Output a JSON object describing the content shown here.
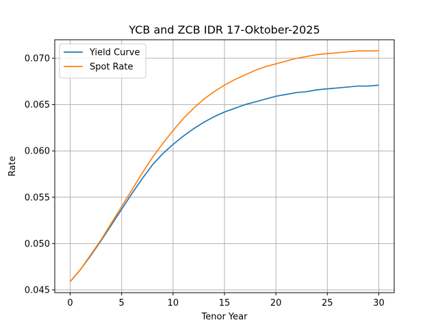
{
  "chart_data": {
    "type": "line",
    "title": "YCB and ZCB IDR 17-Oktober-2025",
    "xlabel": "Tenor Year",
    "ylabel": "Rate",
    "xlim": [
      -1.5,
      31.5
    ],
    "ylim": [
      0.0447,
      0.072
    ],
    "grid": true,
    "legend_position": "top-left",
    "x_ticks": [
      0,
      5,
      10,
      15,
      20,
      25,
      30
    ],
    "x_tick_labels": [
      "0",
      "5",
      "10",
      "15",
      "20",
      "25",
      "30"
    ],
    "y_ticks": [
      0.045,
      0.05,
      0.055,
      0.06,
      0.065,
      0.07
    ],
    "y_tick_labels": [
      "0.045",
      "0.050",
      "0.055",
      "0.060",
      "0.065",
      "0.070"
    ],
    "x": [
      0,
      1,
      2,
      3,
      4,
      5,
      6,
      7,
      8,
      9,
      10,
      11,
      12,
      13,
      14,
      15,
      16,
      17,
      18,
      19,
      20,
      21,
      22,
      23,
      24,
      25,
      26,
      27,
      28,
      29,
      30
    ],
    "series": [
      {
        "name": "Yield Curve",
        "color": "#1f77b4",
        "values": [
          0.0459,
          0.0472,
          0.0487,
          0.0503,
          0.052,
          0.0537,
          0.0554,
          0.057,
          0.0585,
          0.0597,
          0.0607,
          0.0616,
          0.0624,
          0.0631,
          0.0637,
          0.0642,
          0.0646,
          0.065,
          0.0653,
          0.0656,
          0.0659,
          0.0661,
          0.0663,
          0.0664,
          0.0666,
          0.0667,
          0.0668,
          0.0669,
          0.067,
          0.067,
          0.0671
        ]
      },
      {
        "name": "Spot Rate",
        "color": "#ff7f0e",
        "values": [
          0.0459,
          0.0472,
          0.0488,
          0.0504,
          0.0522,
          0.054,
          0.0558,
          0.0576,
          0.0593,
          0.0608,
          0.0622,
          0.0635,
          0.0646,
          0.0656,
          0.0664,
          0.0671,
          0.0677,
          0.0682,
          0.0687,
          0.0691,
          0.0694,
          0.0697,
          0.07,
          0.0702,
          0.0704,
          0.0705,
          0.0706,
          0.0707,
          0.0708,
          0.0708,
          0.0708
        ]
      }
    ]
  }
}
